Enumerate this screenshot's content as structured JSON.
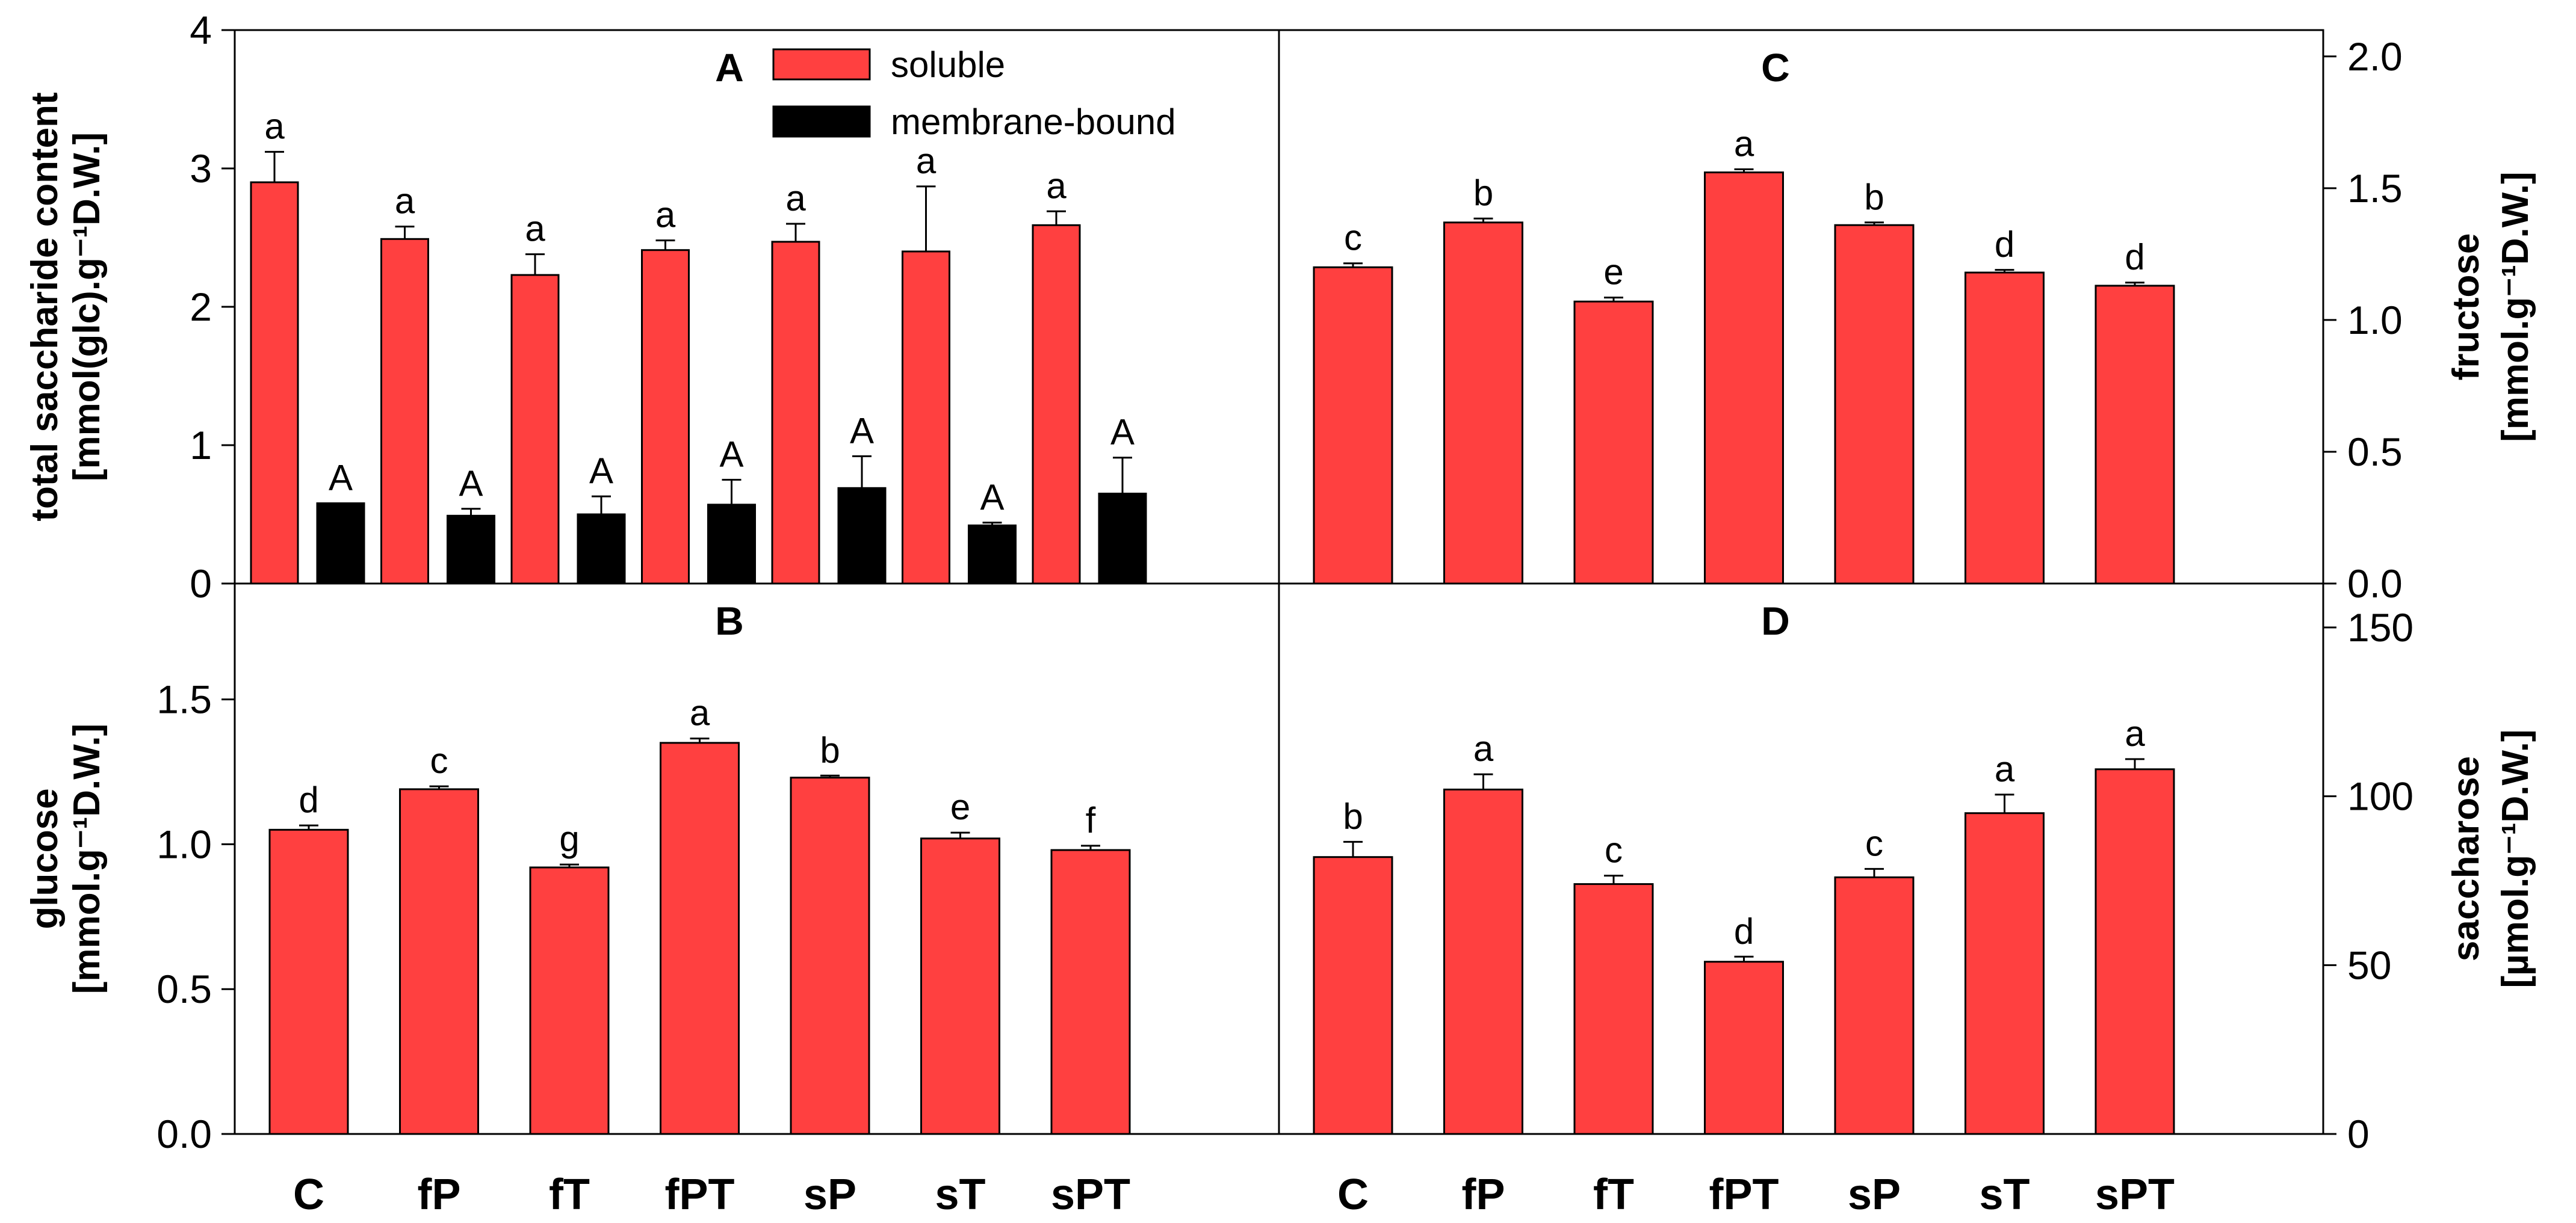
{
  "chart_data": [
    {
      "panel": "A",
      "type": "bar",
      "title": "A",
      "ylabel_lines": [
        "total saccharide content",
        "[mmol(glc).g⁻¹D.W.]"
      ],
      "categories": [
        "C",
        "fP",
        "fT",
        "fPT",
        "sP",
        "sT",
        "sPT"
      ],
      "ylim": [
        0,
        4
      ],
      "yticks": [
        "0",
        "1",
        "2",
        "3",
        "4"
      ],
      "ytick_values": [
        0,
        1,
        2,
        3,
        4
      ],
      "legend": [
        "soluble",
        "membrane-bound"
      ],
      "series": [
        {
          "name": "soluble",
          "color": "#ff4040",
          "values": [
            2.9,
            2.49,
            2.23,
            2.41,
            2.47,
            2.4,
            2.59
          ],
          "errors": [
            0.22,
            0.09,
            0.15,
            0.07,
            0.13,
            0.47,
            0.1
          ],
          "labels": [
            "a",
            "a",
            "a",
            "a",
            "a",
            "a",
            "a"
          ]
        },
        {
          "name": "membrane-bound",
          "color": "#000000",
          "values": [
            0.58,
            0.49,
            0.5,
            0.57,
            0.69,
            0.42,
            0.65
          ],
          "errors": [
            0.0,
            0.05,
            0.13,
            0.18,
            0.23,
            0.02,
            0.26
          ],
          "labels": [
            "A",
            "A",
            "A",
            "A",
            "A",
            "A",
            "A"
          ]
        }
      ]
    },
    {
      "panel": "B",
      "type": "bar",
      "title": "B",
      "ylabel_lines": [
        "glucose",
        "[mmol.g⁻¹D.W.]"
      ],
      "categories": [
        "C",
        "fP",
        "fT",
        "fPT",
        "sP",
        "sT",
        "sPT"
      ],
      "ylim": [
        0,
        1.9
      ],
      "yticks": [
        "0.0",
        "0.5",
        "1.0",
        "1.5"
      ],
      "ytick_values": [
        0,
        0.5,
        1.0,
        1.5
      ],
      "series": [
        {
          "name": "glucose",
          "color": "#ff4040",
          "values": [
            1.05,
            1.19,
            0.92,
            1.35,
            1.23,
            1.02,
            0.98
          ],
          "errors": [
            0.015,
            0.01,
            0.01,
            0.015,
            0.007,
            0.02,
            0.015
          ],
          "labels": [
            "d",
            "c",
            "g",
            "a",
            "b",
            "e",
            "f"
          ]
        }
      ]
    },
    {
      "panel": "C",
      "type": "bar",
      "title": "C",
      "ylabel_lines": [
        "fructose",
        "[mmol.g⁻¹D.W.]"
      ],
      "categories": [
        "C",
        "fP",
        "fT",
        "fPT",
        "sP",
        "sT",
        "sPT"
      ],
      "ylim": [
        0,
        2.1
      ],
      "yticks": [
        "0.0",
        "0.5",
        "1.0",
        "1.5",
        "2.0"
      ],
      "ytick_values": [
        0,
        0.5,
        1.0,
        1.5,
        2.0
      ],
      "series": [
        {
          "name": "fructose",
          "color": "#ff4040",
          "values": [
            1.2,
            1.37,
            1.07,
            1.56,
            1.36,
            1.18,
            1.13
          ],
          "errors": [
            0.015,
            0.015,
            0.015,
            0.012,
            0.01,
            0.01,
            0.012
          ],
          "labels": [
            "c",
            "b",
            "e",
            "a",
            "b",
            "d",
            "d"
          ]
        }
      ]
    },
    {
      "panel": "D",
      "type": "bar",
      "title": "D",
      "ylabel_lines": [
        "saccharose",
        "[µmol.g⁻¹D.W.]"
      ],
      "categories": [
        "C",
        "fP",
        "fT",
        "fPT",
        "sP",
        "sT",
        "sPT"
      ],
      "ylim": [
        0,
        163
      ],
      "yticks": [
        "0",
        "50",
        "100",
        "150"
      ],
      "ytick_values": [
        0,
        50,
        100,
        150
      ],
      "series": [
        {
          "name": "saccharose",
          "color": "#ff4040",
          "values": [
            82,
            102,
            74,
            51,
            76,
            95,
            108
          ],
          "errors": [
            4.5,
            4.5,
            2.5,
            1.5,
            2.5,
            5.5,
            3.0
          ],
          "labels": [
            "b",
            "a",
            "c",
            "d",
            "c",
            "a",
            "a"
          ]
        }
      ]
    }
  ]
}
